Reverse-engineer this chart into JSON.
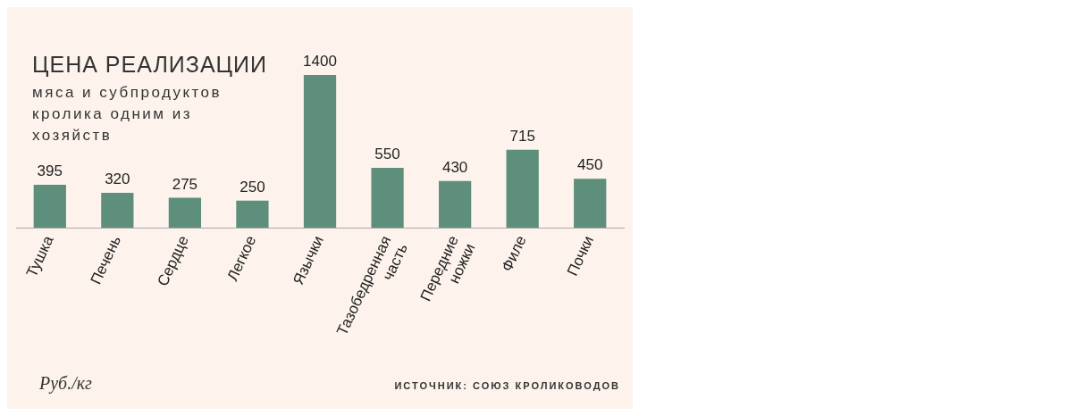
{
  "chart_data": {
    "type": "bar",
    "title": "ЦЕНА РЕАЛИЗАЦИИ",
    "subtitle": "мяса и субпродуктов кролика одним из хозяйств",
    "categories": [
      "Тушка",
      "Печень",
      "Сердце",
      "Легкое",
      "Язычки",
      "Тазобедренная часть",
      "Передние ножки",
      "Филе",
      "Почки"
    ],
    "values": [
      395,
      320,
      275,
      250,
      1400,
      550,
      430,
      715,
      450
    ],
    "color": "#5e8f7c",
    "data_labels": true,
    "grid": false,
    "legend": false,
    "annotations": [
      "Руб./кг",
      "ИСТОЧНИК: СОЮЗ КРОЛИКОВОДОВ"
    ]
  }
}
